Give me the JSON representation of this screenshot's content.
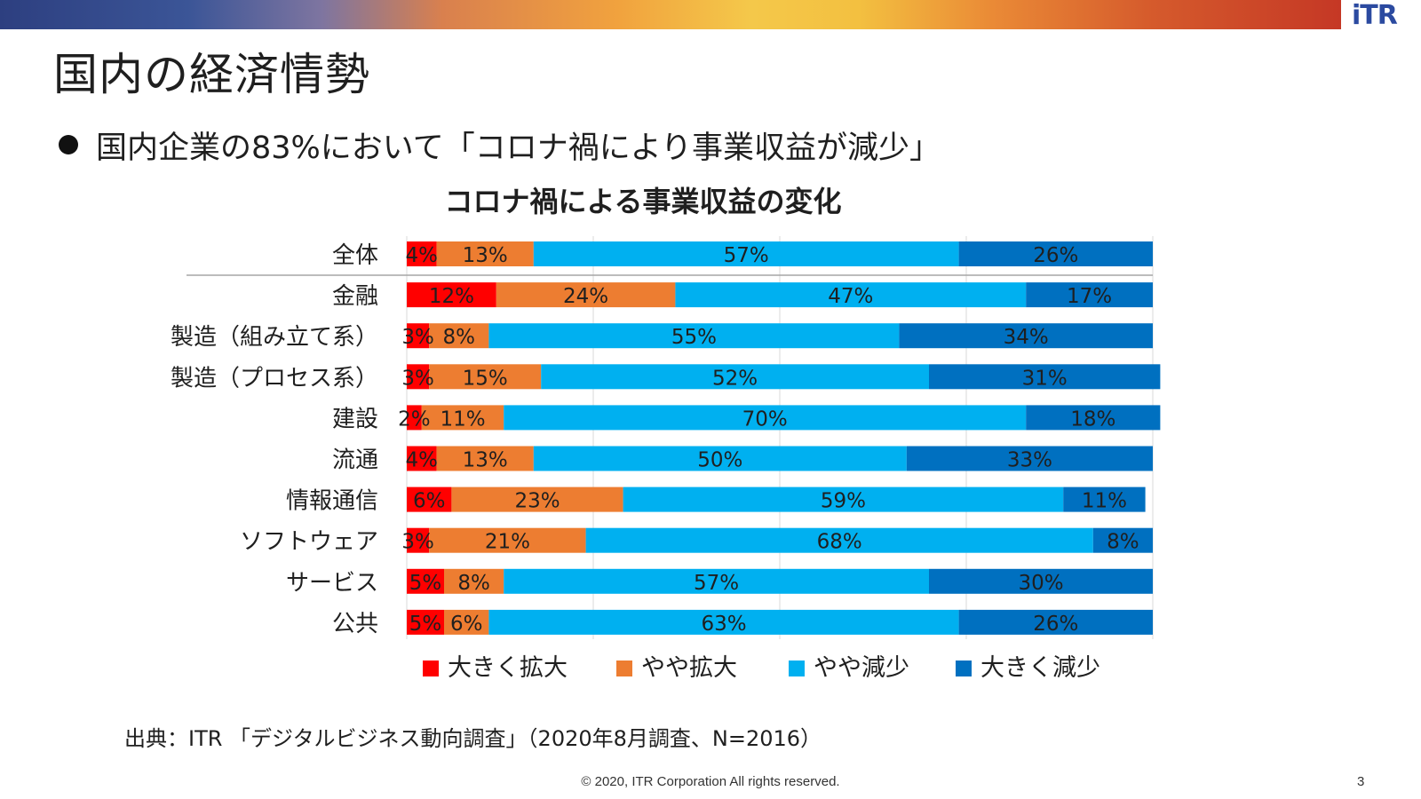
{
  "header": {
    "logo_main": "iTR"
  },
  "slide": {
    "title": "国内の経済情勢",
    "bullet": "国内企業の83%において「コロナ禍により事業収益が減少」",
    "source": "出典：ITR 「デジタルビジネス動向調査」（2020年8月調査、N=2016）",
    "copyright": "© 2020, ITR Corporation  All rights reserved.",
    "page_number": "3"
  },
  "chart_data": {
    "type": "bar",
    "orientation": "horizontal",
    "stacked": "percent",
    "title": "コロナ禍による事業収益の変化",
    "categories": [
      "全体",
      "金融",
      "製造（組み立て系）",
      "製造（プロセス系）",
      "建設",
      "流通",
      "情報通信",
      "ソフトウェア",
      "サービス",
      "公共"
    ],
    "series": [
      {
        "name": "大きく拡大",
        "color": "#ff0000",
        "values": [
          4,
          12,
          3,
          3,
          2,
          4,
          6,
          3,
          5,
          5
        ]
      },
      {
        "name": "やや拡大",
        "color": "#ed7d31",
        "values": [
          13,
          24,
          8,
          15,
          11,
          13,
          23,
          21,
          8,
          6
        ]
      },
      {
        "name": "やや減少",
        "color": "#00b0f0",
        "values": [
          57,
          47,
          55,
          52,
          70,
          50,
          59,
          68,
          57,
          63
        ]
      },
      {
        "name": "大きく減少",
        "color": "#0070c0",
        "values": [
          26,
          17,
          34,
          31,
          18,
          33,
          11,
          8,
          30,
          26
        ]
      }
    ],
    "value_suffix": "%",
    "xlim": [
      0,
      100
    ],
    "grid": true,
    "legend": "bottom"
  }
}
